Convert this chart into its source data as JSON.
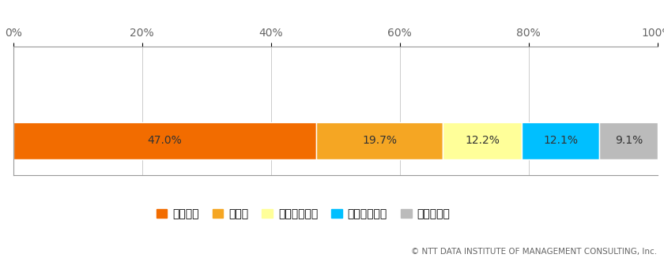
{
  "values": [
    47.0,
    19.7,
    12.2,
    12.1,
    9.1
  ],
  "labels": [
    "47.0%",
    "19.7%",
    "12.2%",
    "12.1%",
    "9.1%"
  ],
  "colors": [
    "#F26C00",
    "#F5A623",
    "#FFFF99",
    "#00BFFF",
    "#BBBBBB"
  ],
  "legend_labels": [
    "策定済み",
    "策定中",
    "策定予定あり",
    "策定予定なし",
    "わからない"
  ],
  "xticks": [
    0,
    20,
    40,
    60,
    80,
    100
  ],
  "xtick_labels": [
    "0%",
    "20%",
    "40%",
    "60%",
    "80%",
    "100%"
  ],
  "copyright": "© NTT DATA INSTITUTE OF MANAGEMENT CONSULTING, Inc.",
  "figsize": [
    8.4,
    3.27
  ],
  "dpi": 100,
  "background_color": "#FFFFFF",
  "bar_edgecolor": "#FFFFFF",
  "spine_color": "#999999",
  "grid_color": "#CCCCCC",
  "text_color": "#333333",
  "tick_label_color": "#666666",
  "copyright_color": "#666666"
}
